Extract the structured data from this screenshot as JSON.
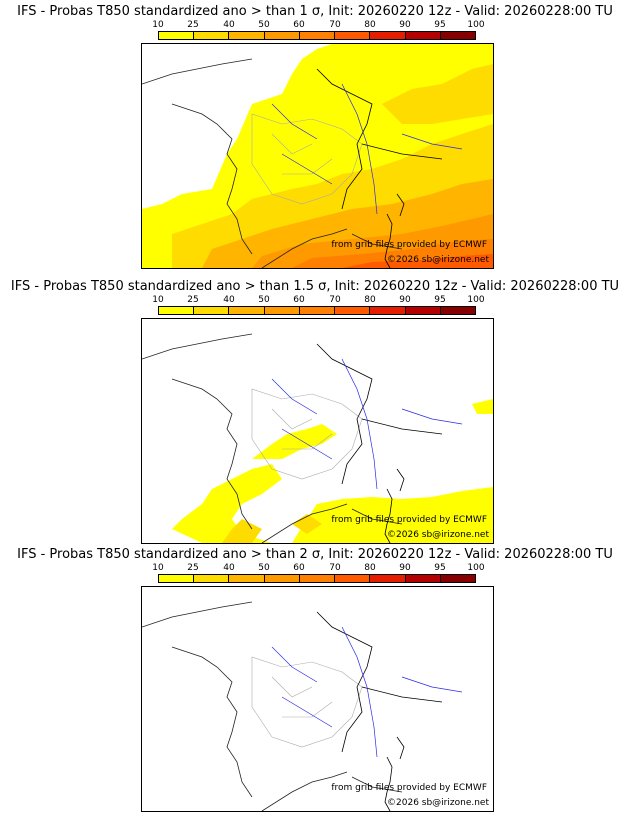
{
  "colors": {
    "scale": [
      "#ffff00",
      "#ffdc00",
      "#ffb400",
      "#ff9900",
      "#ff7f00",
      "#ff5a00",
      "#e61e00",
      "#b40000",
      "#870000",
      "#5a0000"
    ],
    "border": "#000000",
    "rivers": "#2a2ae6",
    "admin": "#aaaaaa",
    "coast": "#222222"
  },
  "colorbar": {
    "labels": [
      "10",
      "25",
      "40",
      "50",
      "60",
      "70",
      "80",
      "90",
      "95",
      "100"
    ]
  },
  "panels": [
    {
      "title": "IFS - Probas T850  standardized ano > than 1 σ, Init: 20260220 12z - Valid: 20260228:00 TU",
      "credit_source": "from grib files provided by ECMWF",
      "credit_site": "©2026 sb@irizone.net"
    },
    {
      "title": "IFS - Probas T850  standardized ano > than 1.5 σ, Init: 20260220 12z - Valid: 20260228:00 TU",
      "credit_source": "from grib files provided by ECMWF",
      "credit_site": "©2026 sb@irizone.net"
    },
    {
      "title": "IFS - Probas T850  standardized ano > than 2 σ, Init: 20260220 12z - Valid: 20260228:00 TU",
      "credit_source": "from grib files provided by ECMWF",
      "credit_site": "©2026 sb@irizone.net"
    }
  ]
}
